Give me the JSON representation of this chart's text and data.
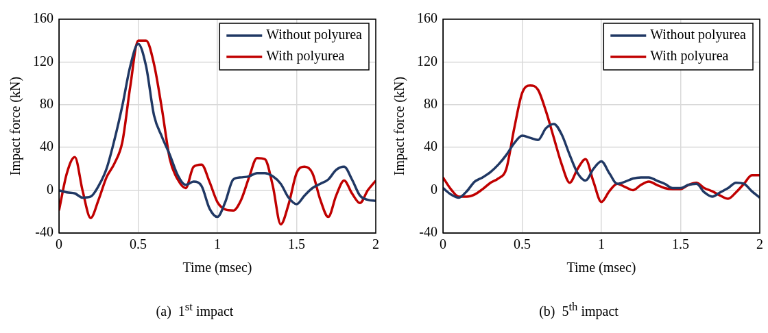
{
  "chart_data": [
    {
      "type": "line",
      "xlabel": "Time (msec)",
      "ylabel": "Impact force (kN)",
      "annotations": [
        "(a)  1$^{st}$ impact"
      ],
      "xlim": [
        0,
        2
      ],
      "xticks": [
        0,
        0.5,
        1,
        1.5,
        2
      ],
      "ylim": [
        -40,
        160
      ],
      "yticks": [
        -40,
        0,
        40,
        80,
        120,
        160
      ],
      "grid": true,
      "legend": "top right",
      "line_style": "solid",
      "x": [
        0,
        0.05,
        0.1,
        0.15,
        0.2,
        0.25,
        0.3,
        0.35,
        0.4,
        0.45,
        0.5,
        0.55,
        0.6,
        0.65,
        0.7,
        0.75,
        0.8,
        0.85,
        0.9,
        0.95,
        1,
        1.05,
        1.1,
        1.15,
        1.2,
        1.25,
        1.3,
        1.35,
        1.4,
        1.45,
        1.5,
        1.55,
        1.6,
        1.65,
        1.7,
        1.75,
        1.8,
        1.85,
        1.9,
        1.95,
        2
      ],
      "series": [
        {
          "name": "Without polyurea",
          "color": "#203864",
          "values": [
            0,
            -2,
            -3,
            -7,
            -6,
            4,
            20,
            47,
            79,
            116,
            137,
            116,
            70,
            50,
            33,
            14,
            5,
            8,
            4,
            -17,
            -25,
            -11,
            10,
            12,
            13,
            16,
            16,
            13,
            6,
            -7,
            -13,
            -5,
            2,
            6,
            10,
            19,
            22,
            10,
            -5,
            -9,
            -10
          ]
        },
        {
          "name": "With polyurea",
          "color": "#c00000",
          "values": [
            -19,
            16,
            31,
            -1,
            -26,
            -9,
            12,
            25,
            45,
            97,
            140,
            140,
            118,
            76,
            29,
            10,
            2,
            22,
            24,
            8,
            -11,
            -18,
            -19,
            -9,
            12,
            30,
            29,
            4,
            -32,
            -13,
            16,
            22,
            16,
            -9,
            -25,
            -5,
            9,
            -3,
            -12,
            0,
            9
          ]
        }
      ]
    },
    {
      "type": "line",
      "xlabel": "Time (msec)",
      "ylabel": "Impact force (kN)",
      "annotations": [
        "(b)  5$^{th}$ impact"
      ],
      "xlim": [
        0,
        2
      ],
      "xticks": [
        0,
        0.5,
        1,
        1.5,
        2
      ],
      "ylim": [
        -40,
        160
      ],
      "yticks": [
        -40,
        0,
        40,
        80,
        120,
        160
      ],
      "grid": true,
      "legend": "top right",
      "line_style": "solid",
      "x": [
        0,
        0.05,
        0.1,
        0.15,
        0.2,
        0.25,
        0.3,
        0.35,
        0.4,
        0.45,
        0.5,
        0.55,
        0.6,
        0.65,
        0.7,
        0.75,
        0.8,
        0.85,
        0.9,
        0.95,
        1,
        1.05,
        1.1,
        1.15,
        1.2,
        1.25,
        1.3,
        1.35,
        1.4,
        1.45,
        1.5,
        1.55,
        1.6,
        1.65,
        1.7,
        1.75,
        1.8,
        1.85,
        1.9,
        1.95,
        2
      ],
      "series": [
        {
          "name": "Without polyurea",
          "color": "#203864",
          "values": [
            2,
            -4,
            -7,
            -1,
            8,
            12,
            17,
            24,
            33,
            44,
            51,
            49,
            47,
            58,
            62,
            52,
            33,
            16,
            9,
            20,
            27,
            16,
            6,
            8,
            11,
            12,
            12,
            9,
            6,
            2,
            2,
            5,
            6,
            -2,
            -6,
            -2,
            2,
            7,
            6,
            -1,
            -7
          ]
        },
        {
          "name": "With polyurea",
          "color": "#c00000",
          "values": [
            12,
            1,
            -6,
            -6,
            -4,
            1,
            7,
            11,
            20,
            58,
            91,
            98,
            94,
            74,
            49,
            24,
            7,
            20,
            29,
            8,
            -11,
            -1,
            6,
            3,
            0,
            5,
            8,
            5,
            2,
            1,
            1,
            5,
            7,
            2,
            -1,
            -5,
            -8,
            -2,
            6,
            14,
            14
          ]
        }
      ]
    }
  ]
}
